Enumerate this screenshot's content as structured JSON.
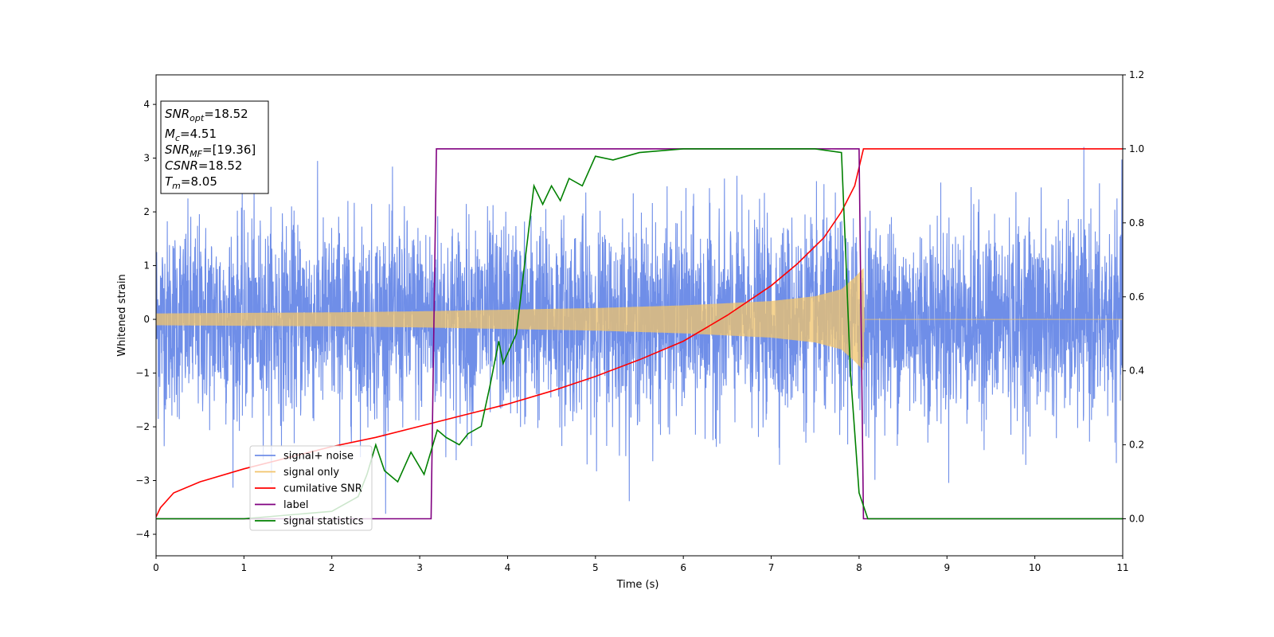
{
  "chart_data": {
    "type": "line",
    "xlabel": "Time (s)",
    "ylabel": "Whitened strain",
    "xlim": [
      0,
      11
    ],
    "ylim": [
      -4.4,
      4.55
    ],
    "y2lim": [
      -0.1,
      1.2
    ],
    "grid": false,
    "legend_position": "lower-left",
    "x_ticks": [
      "0",
      "1",
      "2",
      "3",
      "4",
      "5",
      "6",
      "7",
      "8",
      "9",
      "10",
      "11"
    ],
    "y_ticks": [
      "4",
      "3",
      "2",
      "1",
      "0",
      "−1",
      "−2",
      "−3",
      "−4"
    ],
    "y2_ticks": [
      "1.2",
      "1.0",
      "0.8",
      "0.6",
      "0.4",
      "0.2",
      "0.0"
    ],
    "annotations": [
      {
        "key": "opt",
        "base": "SNR",
        "sub": "opt",
        "value": "=18.52"
      },
      {
        "key": "mc",
        "base": "M",
        "sub": "c",
        "value": "=4.51"
      },
      {
        "key": "mf",
        "base": "SNR",
        "sub": "MF",
        "value": "=[19.36]"
      },
      {
        "key": "csnr",
        "base": "CSNR",
        "sub": "",
        "value": "=18.52"
      },
      {
        "key": "tm",
        "base": "T",
        "sub": "m",
        "value": "=8.05"
      }
    ],
    "series": [
      {
        "name": "signal+ noise",
        "axis": "left",
        "color": "#6f8ee8",
        "description_values": {
          "noise_sigma": 0.9,
          "duration_s": 11
        }
      },
      {
        "name": "signal only",
        "axis": "left",
        "color": "#f2c46b",
        "envelope": [
          [
            0,
            0.11
          ],
          [
            1,
            0.12
          ],
          [
            2,
            0.13
          ],
          [
            3,
            0.15
          ],
          [
            4,
            0.18
          ],
          [
            5,
            0.21
          ],
          [
            6,
            0.26
          ],
          [
            7,
            0.34
          ],
          [
            7.5,
            0.43
          ],
          [
            7.8,
            0.56
          ],
          [
            7.95,
            0.78
          ],
          [
            8.05,
            0.95
          ],
          [
            8.06,
            0.0
          ],
          [
            11,
            0.0
          ]
        ]
      },
      {
        "name": "cumilative SNR",
        "axis": "right",
        "color": "#ff0000",
        "x": [
          0,
          0.05,
          0.2,
          0.5,
          1,
          1.5,
          2,
          2.5,
          3,
          3.5,
          4,
          4.5,
          5,
          5.5,
          6,
          6.5,
          7,
          7.3,
          7.6,
          7.8,
          7.95,
          8.05,
          8.1,
          9,
          10,
          11
        ],
        "y": [
          0.005,
          0.03,
          0.07,
          0.1,
          0.135,
          0.165,
          0.195,
          0.22,
          0.25,
          0.28,
          0.31,
          0.345,
          0.385,
          0.43,
          0.48,
          0.55,
          0.63,
          0.69,
          0.76,
          0.83,
          0.9,
          1.0,
          1.0,
          1.0,
          1.0,
          1.0
        ]
      },
      {
        "name": "label",
        "axis": "right",
        "color": "#800080",
        "x": [
          0,
          3.13,
          3.19,
          8.0,
          8.05,
          11
        ],
        "y": [
          0,
          0,
          1,
          1,
          0,
          0
        ]
      },
      {
        "name": "signal statistics",
        "axis": "right",
        "color": "#008000",
        "x": [
          0,
          1.0,
          2.0,
          2.3,
          2.4,
          2.5,
          2.6,
          2.75,
          2.9,
          3.05,
          3.2,
          3.3,
          3.45,
          3.55,
          3.7,
          3.8,
          3.9,
          3.95,
          4.1,
          4.2,
          4.3,
          4.4,
          4.5,
          4.6,
          4.7,
          4.85,
          5.0,
          5.2,
          5.5,
          6.0,
          6.5,
          7.0,
          7.5,
          7.8,
          7.85,
          7.9,
          8.0,
          8.1,
          9,
          10,
          11
        ],
        "y": [
          0,
          0.0,
          0.02,
          0.06,
          0.12,
          0.2,
          0.13,
          0.1,
          0.18,
          0.12,
          0.24,
          0.22,
          0.2,
          0.23,
          0.25,
          0.36,
          0.48,
          0.42,
          0.5,
          0.7,
          0.9,
          0.85,
          0.9,
          0.86,
          0.92,
          0.9,
          0.98,
          0.97,
          0.99,
          1.0,
          1.0,
          1.0,
          1.0,
          0.99,
          0.7,
          0.4,
          0.07,
          0.0,
          0.0,
          0.0,
          0.0
        ]
      }
    ]
  }
}
